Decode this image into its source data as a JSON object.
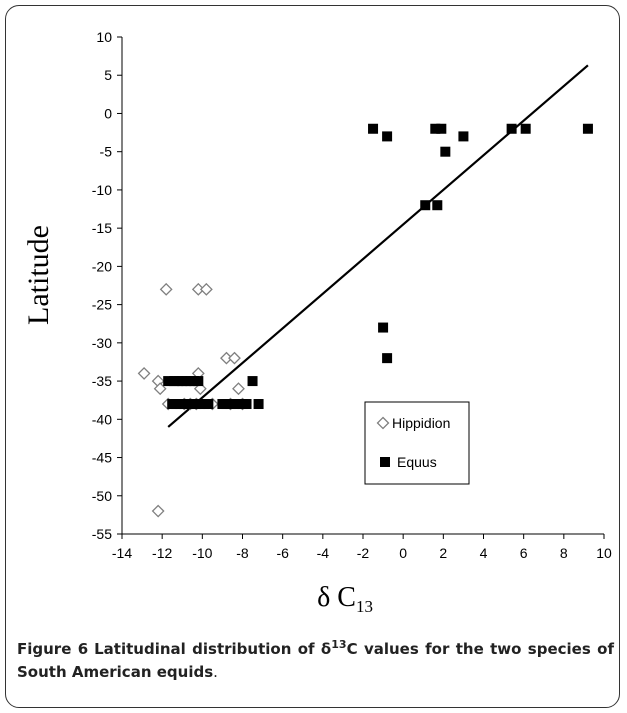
{
  "chart_data": {
    "type": "scatter",
    "xlabel": "δ C",
    "xlabel_sub": "13",
    "ylabel": "Latitude",
    "xlim": [
      -14,
      10
    ],
    "ylim": [
      -55,
      10
    ],
    "x_ticks": [
      -14,
      -12,
      -10,
      -8,
      -6,
      -4,
      -2,
      0,
      2,
      4,
      6,
      8,
      10
    ],
    "y_ticks": [
      10,
      5,
      0,
      -5,
      -10,
      -15,
      -20,
      -25,
      -30,
      -35,
      -40,
      -45,
      -50,
      -55
    ],
    "grid": false,
    "legend_position": "lower-right",
    "series": [
      {
        "name": "Hippidion",
        "marker": "diamond-open",
        "color": "#7f7f7f",
        "points": [
          [
            -12.9,
            -34
          ],
          [
            -12.2,
            -35
          ],
          [
            -12.1,
            -36
          ],
          [
            -12.2,
            -52
          ],
          [
            -11.8,
            -23
          ],
          [
            -11.7,
            -38
          ],
          [
            -10.9,
            -38
          ],
          [
            -10.6,
            -38
          ],
          [
            -10.3,
            -38
          ],
          [
            -10.2,
            -34
          ],
          [
            -10.2,
            -23
          ],
          [
            -10.1,
            -36
          ],
          [
            -9.8,
            -23
          ],
          [
            -9.5,
            -38
          ],
          [
            -8.8,
            -32
          ],
          [
            -8.6,
            -38
          ],
          [
            -8.4,
            -32
          ],
          [
            -8.2,
            -36
          ],
          [
            -8.0,
            -38
          ]
        ]
      },
      {
        "name": "Equus",
        "marker": "square-filled",
        "color": "#000000",
        "points": [
          [
            -11.7,
            -35
          ],
          [
            -11.4,
            -35
          ],
          [
            -11.2,
            -35
          ],
          [
            -11.0,
            -35
          ],
          [
            -10.8,
            -35
          ],
          [
            -10.6,
            -35
          ],
          [
            -10.4,
            -35
          ],
          [
            -10.2,
            -35
          ],
          [
            -11.5,
            -38
          ],
          [
            -11.3,
            -38
          ],
          [
            -11.1,
            -38
          ],
          [
            -10.9,
            -38
          ],
          [
            -10.7,
            -38
          ],
          [
            -10.5,
            -38
          ],
          [
            -10.3,
            -38
          ],
          [
            -10.1,
            -38
          ],
          [
            -9.9,
            -38
          ],
          [
            -9.7,
            -38
          ],
          [
            -9.0,
            -38
          ],
          [
            -8.8,
            -38
          ],
          [
            -8.6,
            -38
          ],
          [
            -8.4,
            -38
          ],
          [
            -8.2,
            -38
          ],
          [
            -8.0,
            -38
          ],
          [
            -7.8,
            -38
          ],
          [
            -7.2,
            -38
          ],
          [
            -7.5,
            -35
          ],
          [
            -1.5,
            -2
          ],
          [
            -0.8,
            -3
          ],
          [
            -1.0,
            -28
          ],
          [
            -0.8,
            -32
          ],
          [
            1.1,
            -12
          ],
          [
            1.6,
            -2
          ],
          [
            1.7,
            -12
          ],
          [
            1.9,
            -2
          ],
          [
            2.1,
            -5
          ],
          [
            3.0,
            -3
          ],
          [
            5.4,
            -2
          ],
          [
            6.1,
            -2
          ],
          [
            9.2,
            -2
          ]
        ]
      }
    ],
    "trendline": {
      "x": [
        -11.7,
        9.2
      ],
      "y": [
        -41,
        6.3
      ]
    }
  },
  "caption": {
    "label": "Figure 6",
    "title_part1": "Latitudinal distribution of δ",
    "title_sup": "13",
    "title_part2": "C values for the two species of South American equids",
    "title_end": "."
  }
}
